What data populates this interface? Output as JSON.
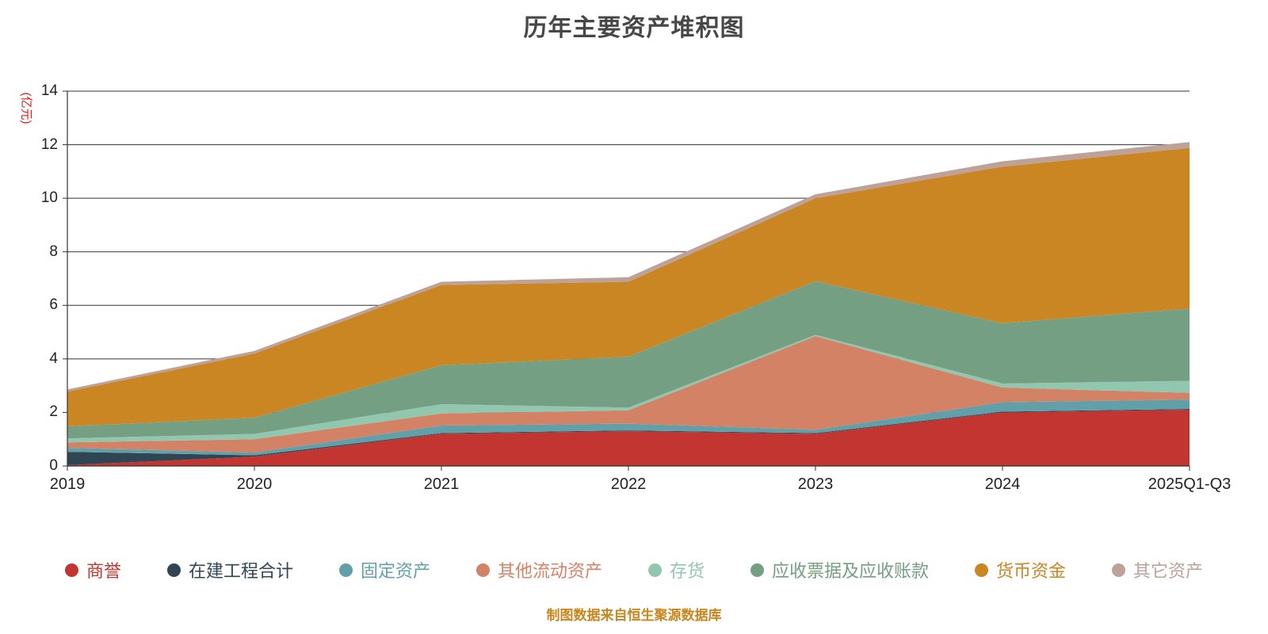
{
  "footer": "制图数据来自恒生聚源数据库",
  "colors": {
    "title": "#474747",
    "axis": "#333333",
    "unit_label": "#e01616",
    "source_note": "#c8861d"
  },
  "chart_data": {
    "type": "area",
    "stacked": true,
    "title": "历年主要资产堆积图",
    "xlabel": "",
    "ylabel": "(亿元)",
    "categories": [
      "2019",
      "2020",
      "2021",
      "2022",
      "2023",
      "2024",
      "2025Q1-Q3"
    ],
    "series": [
      {
        "name": "商誉",
        "color": "#c23531",
        "values": [
          0.03,
          0.35,
          1.2,
          1.3,
          1.2,
          2.0,
          2.1
        ]
      },
      {
        "name": "在建工程合计",
        "color": "#2f4554",
        "values": [
          0.5,
          0.05,
          0.03,
          0.03,
          0.03,
          0.03,
          0.03
        ]
      },
      {
        "name": "固定资产",
        "color": "#61a0a8",
        "values": [
          0.15,
          0.1,
          0.28,
          0.25,
          0.12,
          0.35,
          0.35
        ]
      },
      {
        "name": "其他流动资产",
        "color": "#d48265",
        "values": [
          0.2,
          0.5,
          0.45,
          0.5,
          3.5,
          0.55,
          0.25
        ]
      },
      {
        "name": "存货",
        "color": "#91c7ae",
        "values": [
          0.15,
          0.2,
          0.35,
          0.1,
          0.05,
          0.15,
          0.45
        ]
      },
      {
        "name": "应收票据及应收账款",
        "color": "#749f83",
        "values": [
          0.45,
          0.6,
          1.45,
          1.9,
          2.0,
          2.25,
          2.7
        ]
      },
      {
        "name": "货币资金",
        "color": "#ca8622",
        "values": [
          1.3,
          2.4,
          3.0,
          2.8,
          3.1,
          5.85,
          6.0
        ]
      },
      {
        "name": "其它资产",
        "color": "#bda29a",
        "values": [
          0.08,
          0.1,
          0.12,
          0.17,
          0.15,
          0.2,
          0.22
        ]
      }
    ],
    "ylim": [
      0,
      14
    ],
    "y_ticks": [
      0,
      2,
      4,
      6,
      8,
      10,
      12,
      14
    ],
    "grid": true,
    "legend_position": "bottom"
  }
}
